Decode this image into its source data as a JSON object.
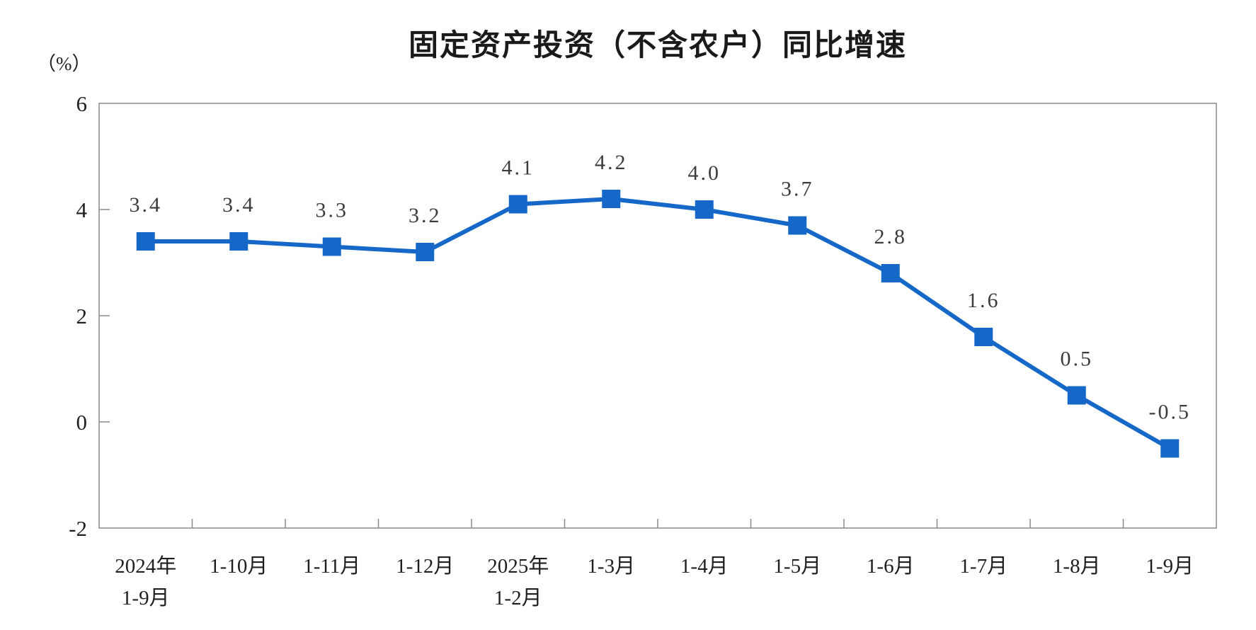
{
  "chart_data": {
    "type": "line",
    "title": "固定资产投资（不含农户）同比增速",
    "unit_label": "（%）",
    "categories": [
      [
        "2024年",
        "1-9月"
      ],
      [
        "1-10月"
      ],
      [
        "1-11月"
      ],
      [
        "1-12月"
      ],
      [
        "2025年",
        "1-2月"
      ],
      [
        "1-3月"
      ],
      [
        "1-4月"
      ],
      [
        "1-5月"
      ],
      [
        "1-6月"
      ],
      [
        "1-7月"
      ],
      [
        "1-8月"
      ],
      [
        "1-9月"
      ]
    ],
    "values": [
      3.4,
      3.4,
      3.3,
      3.2,
      4.1,
      4.2,
      4.0,
      3.7,
      2.8,
      1.6,
      0.5,
      -0.5
    ],
    "point_labels": [
      "3.4",
      "3.4",
      "3.3",
      "3.2",
      "4.1",
      "4.2",
      "4.0",
      "3.7",
      "2.8",
      "1.6",
      "0.5",
      "-0.5"
    ],
    "ylim": [
      -2,
      6
    ],
    "yticks": [
      6,
      4,
      2,
      0,
      -2
    ],
    "grid": false,
    "legend_position": "none",
    "marker_shape": "square",
    "line_color": "#1668c8",
    "marker_color": "#1668c8",
    "axis_color": "#8a8a8a",
    "data_label_color": "#3c3c3c",
    "tick_label_color": "#1f1f1f",
    "background_color": "#ffffff"
  }
}
